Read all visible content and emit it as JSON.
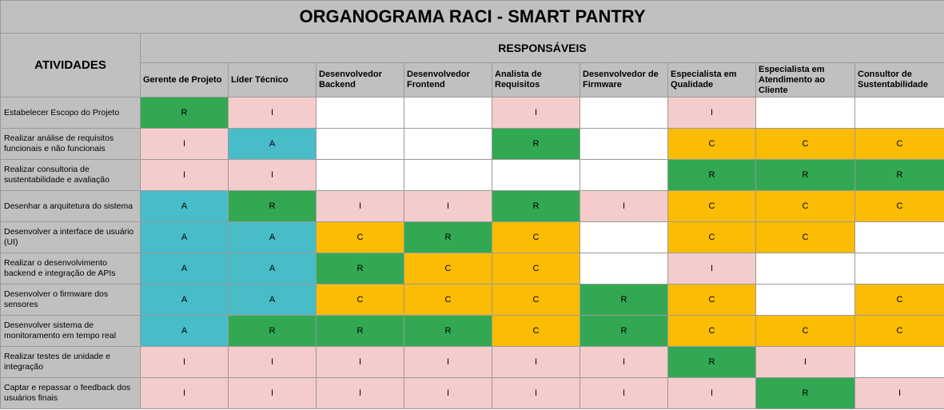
{
  "title": "ORGANOGRAMA RACI - SMART PANTRY",
  "header": {
    "activities_label": "ATIVIDADES",
    "responsible_label": "RESPONSÁVEIS"
  },
  "roles": [
    "Gerente de Projeto",
    "Líder Técnico",
    "Desenvolvedor Backend",
    "Desenvolvedor Frontend",
    "Analista de Requisitos",
    "Desenvolvedor de Firmware",
    "Especialista em Qualidade",
    "Especialista em Atendimento ao Cliente",
    "Consultor de Sustentabilidade"
  ],
  "rows": [
    {
      "activity": "Estabelecer Escopo do Projeto",
      "cells": [
        "R",
        "I",
        "",
        "",
        "I",
        "",
        "I",
        "",
        ""
      ]
    },
    {
      "activity": "Realizar análise de requisitos funcionais e não funcionais",
      "cells": [
        "I",
        "A",
        "",
        "",
        "R",
        "",
        "C",
        "C",
        "C"
      ]
    },
    {
      "activity": "Realizar consultoria de sustentabilidade e avaliação",
      "cells": [
        "I",
        "I",
        "",
        "",
        "",
        "",
        "R",
        "R",
        "R"
      ]
    },
    {
      "activity": "Desenhar a arquitetura do sistema",
      "cells": [
        "A",
        "R",
        "I",
        "I",
        "R",
        "I",
        "C",
        "C",
        "C"
      ]
    },
    {
      "activity": "Desenvolver a interface de usuário (UI)",
      "cells": [
        "A",
        "A",
        "C",
        "R",
        "C",
        "",
        "C",
        "C",
        ""
      ]
    },
    {
      "activity": "Realizar o desenvolvimento backend e integração de APIs",
      "cells": [
        "A",
        "A",
        "R",
        "C",
        "C",
        "",
        "I",
        "",
        ""
      ]
    },
    {
      "activity": "Desenvolver o firmware dos sensores",
      "cells": [
        "A",
        "A",
        "C",
        "C",
        "C",
        "R",
        "C",
        "",
        "C"
      ]
    },
    {
      "activity": "Desenvolver sistema de monitoramento em tempo real",
      "cells": [
        "A",
        "R",
        "R",
        "R",
        "C",
        "R",
        "C",
        "C",
        "C"
      ]
    },
    {
      "activity": "Realizar testes de unidade e integração",
      "cells": [
        "I",
        "I",
        "I",
        "I",
        "I",
        "I",
        "R",
        "I",
        ""
      ]
    },
    {
      "activity": "Captar e repassar o feedback dos usuários finais",
      "cells": [
        "I",
        "I",
        "I",
        "I",
        "I",
        "I",
        "I",
        "R",
        "I"
      ]
    }
  ]
}
